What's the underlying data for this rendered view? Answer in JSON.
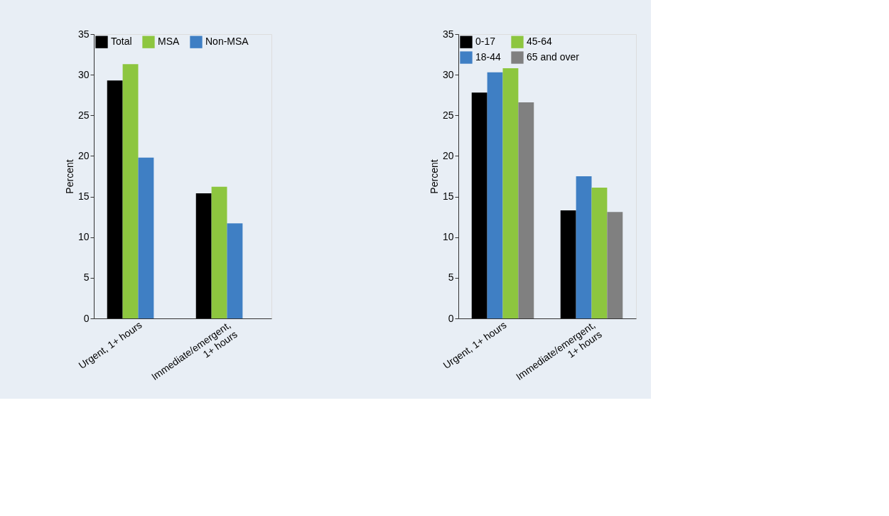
{
  "chart_data": [
    {
      "type": "bar",
      "ylabel": "Percent",
      "categories": [
        "Urgent, 1+ hours",
        "Immediate/emergent,\n1+ hours"
      ],
      "ylim": [
        0,
        35
      ],
      "yticks": [
        0,
        5,
        10,
        15,
        20,
        25,
        30,
        35
      ],
      "grid": false,
      "legend": "top left",
      "series": [
        {
          "name": "Total",
          "color": "#000000",
          "values": [
            29.3,
            15.4
          ]
        },
        {
          "name": "MSA",
          "color": "#8dc63f",
          "values": [
            31.3,
            16.2
          ]
        },
        {
          "name": "Non-MSA",
          "color": "#3f7fc4",
          "values": [
            19.8,
            11.7
          ]
        }
      ]
    },
    {
      "type": "bar",
      "ylabel": "Percent",
      "categories": [
        "Urgent, 1+ hours",
        "Immediate/emergent,\n1+ hours"
      ],
      "ylim": [
        0,
        35
      ],
      "yticks": [
        0,
        5,
        10,
        15,
        20,
        25,
        30,
        35
      ],
      "grid": false,
      "legend": "top left",
      "series": [
        {
          "name": "0-17",
          "color": "#000000",
          "values": [
            27.8,
            13.3
          ]
        },
        {
          "name": "18-44",
          "color": "#3f7fc4",
          "values": [
            30.3,
            17.5
          ]
        },
        {
          "name": "45-64",
          "color": "#8dc63f",
          "values": [
            30.8,
            16.1
          ]
        },
        {
          "name": "65 and over",
          "color": "#808080",
          "values": [
            26.6,
            13.1
          ]
        }
      ]
    }
  ]
}
